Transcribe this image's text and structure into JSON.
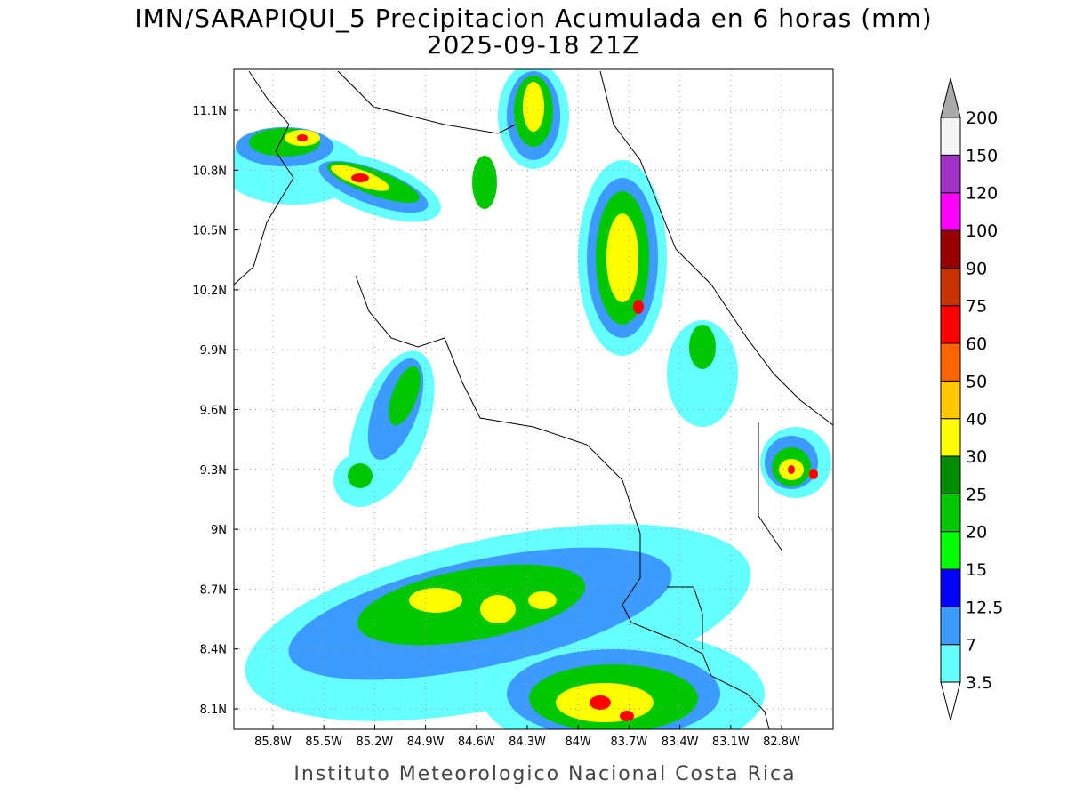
{
  "title": "IMN/SARAPIQUI_5 Precipitacion Acumulada en 6 horas (mm)",
  "subtitle": "2025-09-18 21Z",
  "map": {
    "lat_labels": [
      "11.1N",
      "10.8N",
      "10.5N",
      "10.2N",
      "9.9N",
      "9.6N",
      "9.3N",
      "9N",
      "8.7N",
      "8.4N",
      "8.1N"
    ],
    "lon_labels": [
      "85.8W",
      "85.5W",
      "85.2W",
      "84.9W",
      "84.6W",
      "84.3W",
      "84W",
      "83.7W",
      "83.4W",
      "83.1W",
      "82.8W"
    ]
  },
  "colorbar": {
    "levels": [
      "3.5",
      "7",
      "12.5",
      "15",
      "20",
      "25",
      "30",
      "40",
      "50",
      "60",
      "75",
      "90",
      "100",
      "120",
      "150",
      "200"
    ],
    "colors": [
      "#ffffff",
      "#66ffff",
      "#3d9bff",
      "#0000ff",
      "#00ff00",
      "#00c800",
      "#008c00",
      "#ffff00",
      "#ffc800",
      "#ff6400",
      "#ff0000",
      "#c83200",
      "#960000",
      "#ff00ff",
      "#a032c8",
      "#f5f5f5",
      "#aaaaaa"
    ]
  },
  "footer": "Instituto Meteorologico Nacional Costa Rica"
}
